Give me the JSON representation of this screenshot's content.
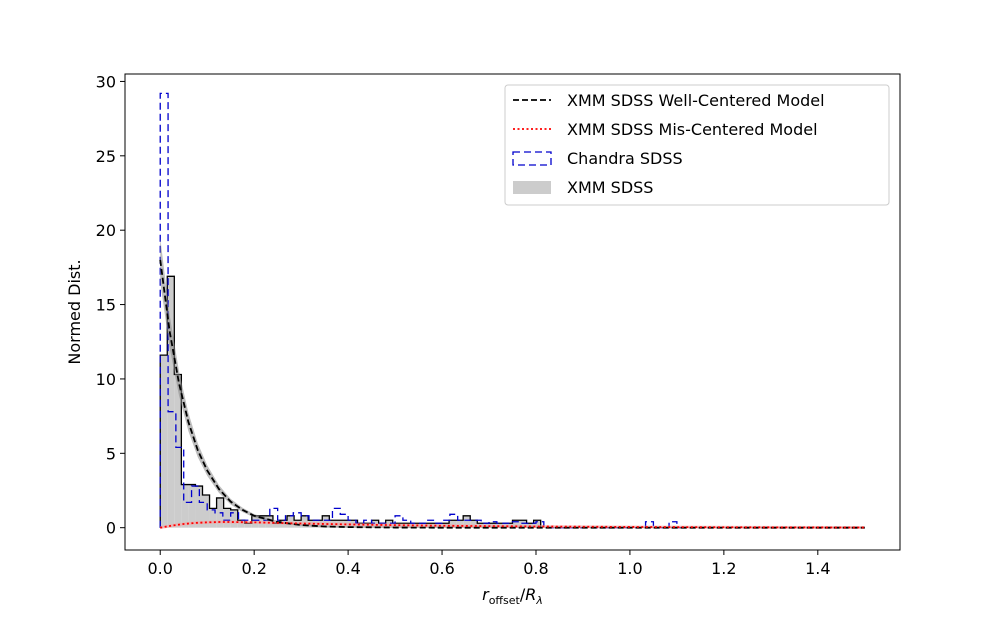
{
  "chart_data": {
    "type": "histogram",
    "xlabel": "r_offset/R_λ",
    "ylabel": "Normed Dist.",
    "xlim": [
      -0.075,
      1.575
    ],
    "ylim": [
      -1.5,
      30.5
    ],
    "xticks": [
      0.0,
      0.2,
      0.4,
      0.6,
      0.8,
      1.0,
      1.2,
      1.4
    ],
    "xtick_labels": [
      "0.0",
      "0.2",
      "0.4",
      "0.6",
      "0.8",
      "1.0",
      "1.2",
      "1.4"
    ],
    "yticks": [
      0,
      5,
      10,
      15,
      20,
      25,
      30
    ],
    "ytick_labels": [
      "0",
      "5",
      "10",
      "15",
      "20",
      "25",
      "30"
    ],
    "legend_position": "top-right",
    "series": [
      {
        "name": "XMM SDSS Well-Centered Model",
        "kind": "line",
        "style": "dashed",
        "color": "#000000",
        "x": [
          0.0,
          0.02,
          0.04,
          0.06,
          0.08,
          0.1,
          0.125,
          0.15,
          0.175,
          0.2,
          0.25,
          0.3,
          0.35,
          0.4,
          0.5,
          0.6,
          0.8,
          1.0,
          1.2,
          1.5
        ],
        "y": [
          18.0,
          13.2,
          9.7,
          7.1,
          5.2,
          3.85,
          2.6,
          1.75,
          1.2,
          0.8,
          0.38,
          0.18,
          0.08,
          0.04,
          0.01,
          0.0,
          0.0,
          0.0,
          0.0,
          0.0
        ]
      },
      {
        "name": "XMM SDSS Mis-Centered Model",
        "kind": "line",
        "style": "dotted",
        "color": "#ff0000",
        "x": [
          0.0,
          0.025,
          0.05,
          0.075,
          0.1,
          0.125,
          0.15,
          0.2,
          0.25,
          0.3,
          0.4,
          0.5,
          0.6,
          0.8,
          1.0,
          1.2,
          1.5
        ],
        "y": [
          0.0,
          0.14,
          0.25,
          0.32,
          0.36,
          0.38,
          0.38,
          0.36,
          0.32,
          0.28,
          0.22,
          0.17,
          0.13,
          0.08,
          0.05,
          0.03,
          0.01
        ]
      },
      {
        "name": "Chandra SDSS",
        "kind": "histogram",
        "style": "dashed",
        "color": "#0000cc",
        "bins": [
          0.0,
          0.0167,
          0.0333,
          0.05,
          0.0667,
          0.0833,
          0.1,
          0.1167,
          0.1333,
          0.15,
          0.1667,
          0.1833,
          0.2,
          0.2167,
          0.2333,
          0.25,
          0.2667,
          0.2833,
          0.3,
          0.3167,
          0.3333,
          0.35,
          0.3667,
          0.3833,
          0.4,
          0.4167,
          0.4333,
          0.45,
          0.4667,
          0.4833,
          0.5,
          0.5167,
          0.5333,
          0.55,
          0.5667,
          0.5833,
          0.6,
          0.6167,
          0.6333,
          0.65,
          0.6667,
          0.6833,
          0.7,
          0.7167,
          0.7333,
          0.75,
          0.7667,
          0.7833,
          0.8,
          0.8167,
          1.0333,
          1.05,
          1.0667,
          1.0833,
          1.1,
          1.1167
        ],
        "values": [
          29.2,
          7.8,
          5.4,
          1.7,
          2.8,
          1.7,
          1.2,
          1.0,
          0.5,
          1.0,
          0.5,
          0.5,
          0.5,
          0.5,
          1.3,
          0.5,
          0.8,
          1.0,
          0.8,
          0.5,
          0.5,
          0.5,
          1.3,
          0.9,
          0.5,
          0.3,
          0.5,
          0.3,
          0.3,
          0.3,
          0.8,
          0.5,
          0.3,
          0.3,
          0.5,
          0.3,
          0.5,
          0.9,
          0.5,
          0.5,
          0.5,
          0.3,
          0.4,
          0.3,
          0.3,
          0.4,
          0.3,
          0.3,
          0.4,
          0.0,
          0.4,
          0.0,
          0.0,
          0.4,
          0.0
        ]
      },
      {
        "name": "XMM SDSS",
        "kind": "histogram",
        "style": "filled",
        "color": "#cccccc",
        "edge_color": "#000000",
        "bins": [
          0.0,
          0.015,
          0.03,
          0.045,
          0.06,
          0.075,
          0.09,
          0.105,
          0.12,
          0.135,
          0.15,
          0.165,
          0.18,
          0.195,
          0.21,
          0.225,
          0.24,
          0.255,
          0.27,
          0.285,
          0.3,
          0.315,
          0.33,
          0.345,
          0.36,
          0.375,
          0.39,
          0.405,
          0.42,
          0.435,
          0.45,
          0.465,
          0.48,
          0.495,
          0.51,
          0.525,
          0.54,
          0.555,
          0.57,
          0.585,
          0.6,
          0.615,
          0.63,
          0.645,
          0.66,
          0.675,
          0.69,
          0.705,
          0.72,
          0.735,
          0.75,
          0.765,
          0.78,
          0.795,
          0.81
        ],
        "values": [
          11.6,
          16.9,
          10.3,
          2.9,
          2.9,
          2.8,
          2.2,
          1.3,
          2.0,
          1.3,
          1.2,
          0.5,
          0.3,
          0.8,
          0.8,
          0.8,
          0.3,
          0.5,
          0.8,
          0.5,
          0.8,
          0.5,
          0.5,
          0.8,
          0.5,
          0.5,
          0.5,
          0.5,
          0.3,
          0.3,
          0.5,
          0.3,
          0.5,
          0.3,
          0.3,
          0.3,
          0.3,
          0.3,
          0.3,
          0.3,
          0.3,
          0.5,
          0.5,
          0.8,
          0.5,
          0.3,
          0.3,
          0.3,
          0.3,
          0.3,
          0.5,
          0.5,
          0.3,
          0.5
        ]
      }
    ]
  }
}
